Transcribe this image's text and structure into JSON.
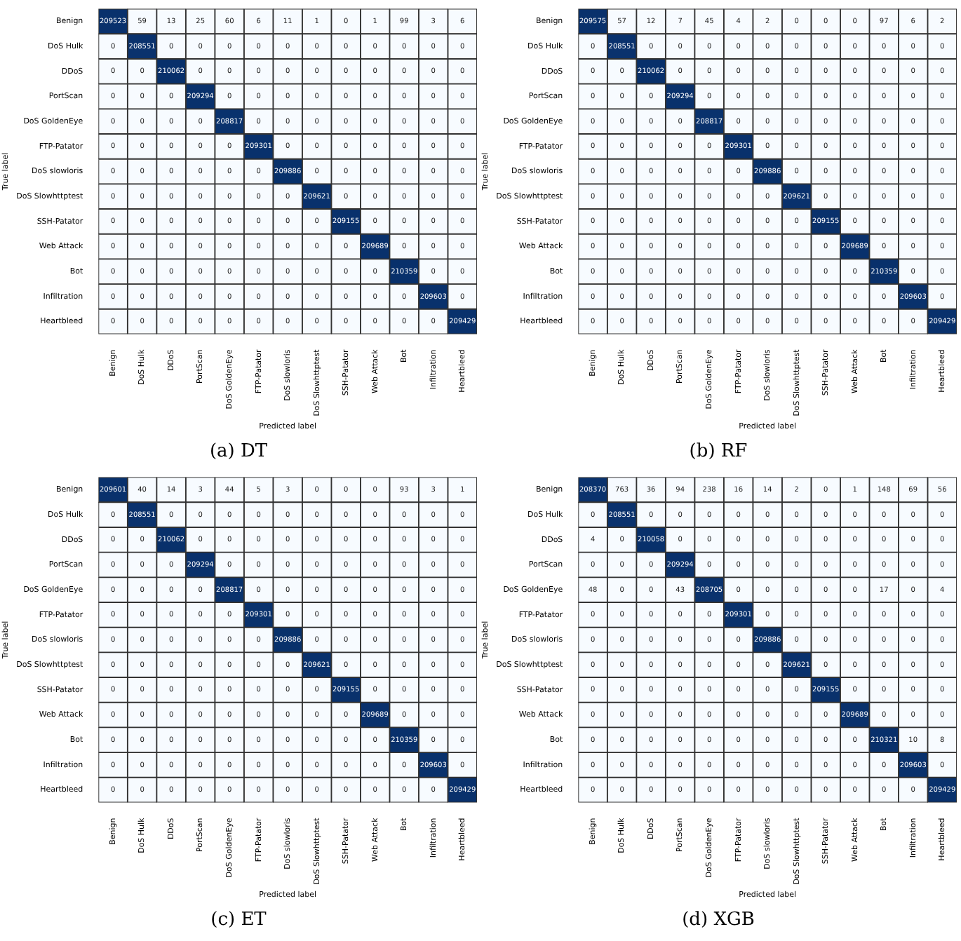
{
  "chart_data": [
    {
      "type": "heatmap",
      "data_labels": true,
      "title": "(a) DT",
      "xlabel": "Predicted label",
      "ylabel": "True label",
      "categories": [
        "Benign",
        "DoS Hulk",
        "DDoS",
        "PortScan",
        "DoS GoldenEye",
        "FTP-Patator",
        "DoS slowloris",
        "DoS Slowhttptest",
        "SSH-Patator",
        "Web Attack",
        "Bot",
        "Infiltration",
        "Heartbleed"
      ],
      "y_categories": [
        "Benign",
        "DoS Hulk",
        "DDoS",
        "PortScan",
        "DoS GoldenEye",
        "FTP-Patator",
        "DoS slowloris",
        "DoS Slowhttptest",
        "SSH-Patator",
        "Web Attack",
        "Bot",
        "Infiltration",
        "Heartbleed"
      ],
      "cells": [
        [
          209523,
          59,
          13,
          25,
          60,
          6,
          11,
          1,
          0,
          1,
          99,
          3,
          6
        ],
        [
          0,
          208551,
          0,
          0,
          0,
          0,
          0,
          0,
          0,
          0,
          0,
          0,
          0
        ],
        [
          0,
          0,
          210062,
          0,
          0,
          0,
          0,
          0,
          0,
          0,
          0,
          0,
          0
        ],
        [
          0,
          0,
          0,
          209294,
          0,
          0,
          0,
          0,
          0,
          0,
          0,
          0,
          0
        ],
        [
          0,
          0,
          0,
          0,
          208817,
          0,
          0,
          0,
          0,
          0,
          0,
          0,
          0
        ],
        [
          0,
          0,
          0,
          0,
          0,
          209301,
          0,
          0,
          0,
          0,
          0,
          0,
          0
        ],
        [
          0,
          0,
          0,
          0,
          0,
          0,
          209886,
          0,
          0,
          0,
          0,
          0,
          0
        ],
        [
          0,
          0,
          0,
          0,
          0,
          0,
          0,
          209621,
          0,
          0,
          0,
          0,
          0
        ],
        [
          0,
          0,
          0,
          0,
          0,
          0,
          0,
          0,
          209155,
          0,
          0,
          0,
          0
        ],
        [
          0,
          0,
          0,
          0,
          0,
          0,
          0,
          0,
          0,
          209689,
          0,
          0,
          0
        ],
        [
          0,
          0,
          0,
          0,
          0,
          0,
          0,
          0,
          0,
          0,
          210359,
          0,
          0
        ],
        [
          0,
          0,
          0,
          0,
          0,
          0,
          0,
          0,
          0,
          0,
          0,
          209603,
          0
        ],
        [
          0,
          0,
          0,
          0,
          0,
          0,
          0,
          0,
          0,
          0,
          0,
          0,
          209429
        ]
      ]
    },
    {
      "type": "heatmap",
      "data_labels": true,
      "title": "(b) RF",
      "xlabel": "Predicted label",
      "ylabel": "True label",
      "categories": [
        "Benign",
        "DoS Hulk",
        "DDoS",
        "PortScan",
        "DoS GoldenEye",
        "FTP-Patator",
        "DoS slowloris",
        "DoS Slowhttptest",
        "SSH-Patator",
        "Web Attack",
        "Bot",
        "Infiltration",
        "Heartbleed"
      ],
      "y_categories": [
        "Benign",
        "DoS Hulk",
        "DDoS",
        "PortScan",
        "DoS GoldenEye",
        "FTP-Patator",
        "DoS slowloris",
        "DoS Slowhttptest",
        "SSH-Patator",
        "Web Attack",
        "Bot",
        "Infiltration",
        "Heartbleed"
      ],
      "cells": [
        [
          209575,
          57,
          12,
          7,
          45,
          4,
          2,
          0,
          0,
          0,
          97,
          6,
          2
        ],
        [
          0,
          208551,
          0,
          0,
          0,
          0,
          0,
          0,
          0,
          0,
          0,
          0,
          0
        ],
        [
          0,
          0,
          210062,
          0,
          0,
          0,
          0,
          0,
          0,
          0,
          0,
          0,
          0
        ],
        [
          0,
          0,
          0,
          209294,
          0,
          0,
          0,
          0,
          0,
          0,
          0,
          0,
          0
        ],
        [
          0,
          0,
          0,
          0,
          208817,
          0,
          0,
          0,
          0,
          0,
          0,
          0,
          0
        ],
        [
          0,
          0,
          0,
          0,
          0,
          209301,
          0,
          0,
          0,
          0,
          0,
          0,
          0
        ],
        [
          0,
          0,
          0,
          0,
          0,
          0,
          209886,
          0,
          0,
          0,
          0,
          0,
          0
        ],
        [
          0,
          0,
          0,
          0,
          0,
          0,
          0,
          209621,
          0,
          0,
          0,
          0,
          0
        ],
        [
          0,
          0,
          0,
          0,
          0,
          0,
          0,
          0,
          209155,
          0,
          0,
          0,
          0
        ],
        [
          0,
          0,
          0,
          0,
          0,
          0,
          0,
          0,
          0,
          209689,
          0,
          0,
          0
        ],
        [
          0,
          0,
          0,
          0,
          0,
          0,
          0,
          0,
          0,
          0,
          210359,
          0,
          0
        ],
        [
          0,
          0,
          0,
          0,
          0,
          0,
          0,
          0,
          0,
          0,
          0,
          209603,
          0
        ],
        [
          0,
          0,
          0,
          0,
          0,
          0,
          0,
          0,
          0,
          0,
          0,
          0,
          209429
        ]
      ]
    },
    {
      "type": "heatmap",
      "data_labels": true,
      "title": "(c) ET",
      "xlabel": "Predicted label",
      "ylabel": "True label",
      "categories": [
        "Benign",
        "DoS Hulk",
        "DDoS",
        "PortScan",
        "DoS GoldenEye",
        "FTP-Patator",
        "DoS slowloris",
        "DoS Slowhttptest",
        "SSH-Patator",
        "Web Attack",
        "Bot",
        "Infiltration",
        "Heartbleed"
      ],
      "y_categories": [
        "Benign",
        "DoS Hulk",
        "DDoS",
        "PortScan",
        "DoS GoldenEye",
        "FTP-Patator",
        "DoS slowloris",
        "DoS Slowhttptest",
        "SSH-Patator",
        "Web Attack",
        "Bot",
        "Infiltration",
        "Heartbleed"
      ],
      "cells": [
        [
          209601,
          40,
          14,
          3,
          44,
          5,
          3,
          0,
          0,
          0,
          93,
          3,
          1
        ],
        [
          0,
          208551,
          0,
          0,
          0,
          0,
          0,
          0,
          0,
          0,
          0,
          0,
          0
        ],
        [
          0,
          0,
          210062,
          0,
          0,
          0,
          0,
          0,
          0,
          0,
          0,
          0,
          0
        ],
        [
          0,
          0,
          0,
          209294,
          0,
          0,
          0,
          0,
          0,
          0,
          0,
          0,
          0
        ],
        [
          0,
          0,
          0,
          0,
          208817,
          0,
          0,
          0,
          0,
          0,
          0,
          0,
          0
        ],
        [
          0,
          0,
          0,
          0,
          0,
          209301,
          0,
          0,
          0,
          0,
          0,
          0,
          0
        ],
        [
          0,
          0,
          0,
          0,
          0,
          0,
          209886,
          0,
          0,
          0,
          0,
          0,
          0
        ],
        [
          0,
          0,
          0,
          0,
          0,
          0,
          0,
          209621,
          0,
          0,
          0,
          0,
          0
        ],
        [
          0,
          0,
          0,
          0,
          0,
          0,
          0,
          0,
          209155,
          0,
          0,
          0,
          0
        ],
        [
          0,
          0,
          0,
          0,
          0,
          0,
          0,
          0,
          0,
          209689,
          0,
          0,
          0
        ],
        [
          0,
          0,
          0,
          0,
          0,
          0,
          0,
          0,
          0,
          0,
          210359,
          0,
          0
        ],
        [
          0,
          0,
          0,
          0,
          0,
          0,
          0,
          0,
          0,
          0,
          0,
          209603,
          0
        ],
        [
          0,
          0,
          0,
          0,
          0,
          0,
          0,
          0,
          0,
          0,
          0,
          0,
          209429
        ]
      ]
    },
    {
      "type": "heatmap",
      "data_labels": true,
      "title": "(d) XGB",
      "xlabel": "Predicted label",
      "ylabel": "True label",
      "categories": [
        "Benign",
        "DoS Hulk",
        "DDoS",
        "PortScan",
        "DoS GoldenEye",
        "FTP-Patator",
        "DoS slowloris",
        "DoS Slowhttptest",
        "SSH-Patator",
        "Web Attack",
        "Bot",
        "Infiltration",
        "Heartbleed"
      ],
      "y_categories": [
        "Benign",
        "DoS Hulk",
        "DDoS",
        "PortScan",
        "DoS GoldenEye",
        "FTP-Patator",
        "DoS slowloris",
        "DoS Slowhttptest",
        "SSH-Patator",
        "Web Attack",
        "Bot",
        "Infiltration",
        "Heartbleed"
      ],
      "cells": [
        [
          208370,
          763,
          36,
          94,
          238,
          16,
          14,
          2,
          0,
          1,
          148,
          69,
          56
        ],
        [
          0,
          208551,
          0,
          0,
          0,
          0,
          0,
          0,
          0,
          0,
          0,
          0,
          0
        ],
        [
          4,
          0,
          210058,
          0,
          0,
          0,
          0,
          0,
          0,
          0,
          0,
          0,
          0
        ],
        [
          0,
          0,
          0,
          209294,
          0,
          0,
          0,
          0,
          0,
          0,
          0,
          0,
          0
        ],
        [
          48,
          0,
          0,
          43,
          208705,
          0,
          0,
          0,
          0,
          0,
          17,
          0,
          4
        ],
        [
          0,
          0,
          0,
          0,
          0,
          209301,
          0,
          0,
          0,
          0,
          0,
          0,
          0
        ],
        [
          0,
          0,
          0,
          0,
          0,
          0,
          209886,
          0,
          0,
          0,
          0,
          0,
          0
        ],
        [
          0,
          0,
          0,
          0,
          0,
          0,
          0,
          209621,
          0,
          0,
          0,
          0,
          0
        ],
        [
          0,
          0,
          0,
          0,
          0,
          0,
          0,
          0,
          209155,
          0,
          0,
          0,
          0
        ],
        [
          0,
          0,
          0,
          0,
          0,
          0,
          0,
          0,
          0,
          209689,
          0,
          0,
          0
        ],
        [
          0,
          0,
          0,
          0,
          0,
          0,
          0,
          0,
          0,
          0,
          210321,
          10,
          8
        ],
        [
          0,
          0,
          0,
          0,
          0,
          0,
          0,
          0,
          0,
          0,
          0,
          209603,
          0
        ],
        [
          0,
          0,
          0,
          0,
          0,
          0,
          0,
          0,
          0,
          0,
          0,
          0,
          209429
        ]
      ]
    }
  ]
}
